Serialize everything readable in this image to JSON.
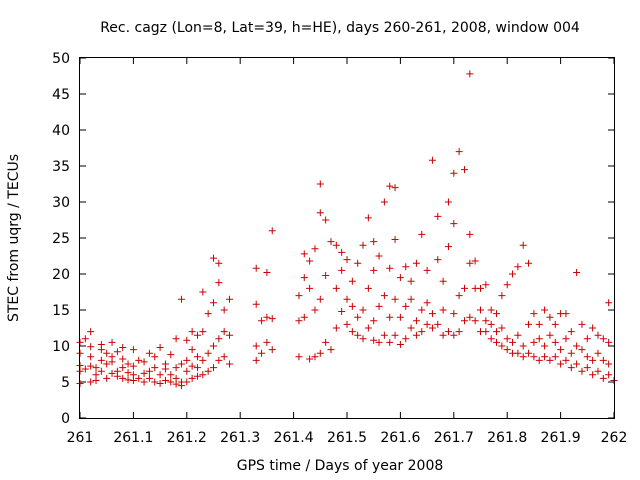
{
  "chart_data": {
    "type": "scatter",
    "title": "Rec. cagz (Lon=8, Lat=39, h=HE), days 260-261, 2008, window 004",
    "xlabel": "GPS time / Days of year 2008",
    "ylabel": "STEC from uqrg / TECUs",
    "xlim": [
      261,
      262
    ],
    "ylim": [
      0,
      50
    ],
    "xticks": [
      "261",
      "261.1",
      "261.2",
      "261.3",
      "261.4",
      "261.5",
      "261.6",
      "261.7",
      "261.8",
      "261.9",
      "262"
    ],
    "yticks": [
      "0",
      "5",
      "10",
      "15",
      "20",
      "25",
      "30",
      "35",
      "40",
      "45",
      "50"
    ],
    "grid": false,
    "marker": "plus",
    "color": "#cc0000",
    "series": [
      {
        "points": [
          [
            261.0,
            4.8
          ],
          [
            261.0,
            6.5
          ],
          [
            261.0,
            7.3
          ],
          [
            261.0,
            9.0
          ],
          [
            261.0,
            10.5
          ],
          [
            261.01,
            11.0
          ],
          [
            261.01,
            6.8
          ],
          [
            261.02,
            5.0
          ],
          [
            261.02,
            7.2
          ],
          [
            261.02,
            8.5
          ],
          [
            261.02,
            9.9
          ],
          [
            261.02,
            12.0
          ],
          [
            261.03,
            6.0
          ],
          [
            261.03,
            7.0
          ],
          [
            261.03,
            5.2
          ],
          [
            261.04,
            6.5
          ],
          [
            261.04,
            8.0
          ],
          [
            261.04,
            9.5
          ],
          [
            261.04,
            10.2
          ],
          [
            261.05,
            5.5
          ],
          [
            261.05,
            7.5
          ],
          [
            261.05,
            9.0
          ],
          [
            261.06,
            6.2
          ],
          [
            261.06,
            7.8
          ],
          [
            261.06,
            8.5
          ],
          [
            261.06,
            10.5
          ],
          [
            261.07,
            5.8
          ],
          [
            261.07,
            6.5
          ],
          [
            261.07,
            9.2
          ],
          [
            261.08,
            5.5
          ],
          [
            261.08,
            7.0
          ],
          [
            261.08,
            8.2
          ],
          [
            261.08,
            9.8
          ],
          [
            261.09,
            5.3
          ],
          [
            261.09,
            6.3
          ],
          [
            261.09,
            7.5
          ],
          [
            261.1,
            5.2
          ],
          [
            261.1,
            6.0
          ],
          [
            261.1,
            7.2
          ],
          [
            261.1,
            9.5
          ],
          [
            261.11,
            5.5
          ],
          [
            261.11,
            8.0
          ],
          [
            261.12,
            5.0
          ],
          [
            261.12,
            6.2
          ],
          [
            261.12,
            7.8
          ],
          [
            261.13,
            5.5
          ],
          [
            261.13,
            6.5
          ],
          [
            261.13,
            9.0
          ],
          [
            261.14,
            5.0
          ],
          [
            261.14,
            7.0
          ],
          [
            261.14,
            8.5
          ],
          [
            261.15,
            4.8
          ],
          [
            261.15,
            6.0
          ],
          [
            261.15,
            9.8
          ],
          [
            261.16,
            5.2
          ],
          [
            261.16,
            6.8
          ],
          [
            261.16,
            7.5
          ],
          [
            261.17,
            5.0
          ],
          [
            261.17,
            6.0
          ],
          [
            261.17,
            8.8
          ],
          [
            261.18,
            4.7
          ],
          [
            261.18,
            5.5
          ],
          [
            261.18,
            7.0
          ],
          [
            261.18,
            11.0
          ],
          [
            261.19,
            4.5
          ],
          [
            261.19,
            5.0
          ],
          [
            261.19,
            7.5
          ],
          [
            261.19,
            16.5
          ],
          [
            261.2,
            5.0
          ],
          [
            261.2,
            6.5
          ],
          [
            261.2,
            8.0
          ],
          [
            261.2,
            10.8
          ],
          [
            261.21,
            5.5
          ],
          [
            261.21,
            7.2
          ],
          [
            261.21,
            9.5
          ],
          [
            261.21,
            12.0
          ],
          [
            261.22,
            5.8
          ],
          [
            261.22,
            7.0
          ],
          [
            261.22,
            8.5
          ],
          [
            261.22,
            11.5
          ],
          [
            261.23,
            6.0
          ],
          [
            261.23,
            8.0
          ],
          [
            261.23,
            12.0
          ],
          [
            261.23,
            17.5
          ],
          [
            261.24,
            6.5
          ],
          [
            261.24,
            9.0
          ],
          [
            261.24,
            14.5
          ],
          [
            261.25,
            7.0
          ],
          [
            261.25,
            10.0
          ],
          [
            261.25,
            16.0
          ],
          [
            261.25,
            22.2
          ],
          [
            261.26,
            8.0
          ],
          [
            261.26,
            11.0
          ],
          [
            261.26,
            18.8
          ],
          [
            261.26,
            21.5
          ],
          [
            261.27,
            8.5
          ],
          [
            261.27,
            12.0
          ],
          [
            261.27,
            15.0
          ],
          [
            261.28,
            7.5
          ],
          [
            261.28,
            11.5
          ],
          [
            261.28,
            16.5
          ],
          [
            261.33,
            8.0
          ],
          [
            261.33,
            10.0
          ],
          [
            261.33,
            15.8
          ],
          [
            261.33,
            20.8
          ],
          [
            261.34,
            9.0
          ],
          [
            261.34,
            13.5
          ],
          [
            261.35,
            10.5
          ],
          [
            261.35,
            14.0
          ],
          [
            261.35,
            20.2
          ],
          [
            261.36,
            9.5
          ],
          [
            261.36,
            13.8
          ],
          [
            261.36,
            26.0
          ],
          [
            261.41,
            8.5
          ],
          [
            261.41,
            13.5
          ],
          [
            261.41,
            17.0
          ],
          [
            261.42,
            14.0
          ],
          [
            261.42,
            19.5
          ],
          [
            261.42,
            22.8
          ],
          [
            261.43,
            8.2
          ],
          [
            261.43,
            18.0
          ],
          [
            261.43,
            21.8
          ],
          [
            261.44,
            8.5
          ],
          [
            261.44,
            15.0
          ],
          [
            261.44,
            23.5
          ],
          [
            261.45,
            9.0
          ],
          [
            261.45,
            16.5
          ],
          [
            261.45,
            28.5
          ],
          [
            261.45,
            32.5
          ],
          [
            261.46,
            10.5
          ],
          [
            261.46,
            19.8
          ],
          [
            261.46,
            27.5
          ],
          [
            261.47,
            9.5
          ],
          [
            261.47,
            24.5
          ],
          [
            261.48,
            12.5
          ],
          [
            261.48,
            18.0
          ],
          [
            261.48,
            24.0
          ],
          [
            261.49,
            14.8
          ],
          [
            261.49,
            20.5
          ],
          [
            261.49,
            23.0
          ],
          [
            261.5,
            13.0
          ],
          [
            261.5,
            16.5
          ],
          [
            261.5,
            22.0
          ],
          [
            261.51,
            12.0
          ],
          [
            261.51,
            15.5
          ],
          [
            261.51,
            19.0
          ],
          [
            261.52,
            11.5
          ],
          [
            261.52,
            14.0
          ],
          [
            261.52,
            21.5
          ],
          [
            261.53,
            11.0
          ],
          [
            261.53,
            15.0
          ],
          [
            261.53,
            24.0
          ],
          [
            261.54,
            12.5
          ],
          [
            261.54,
            18.0
          ],
          [
            261.54,
            27.8
          ],
          [
            261.55,
            10.8
          ],
          [
            261.55,
            13.5
          ],
          [
            261.55,
            20.5
          ],
          [
            261.55,
            24.5
          ],
          [
            261.56,
            10.5
          ],
          [
            261.56,
            15.5
          ],
          [
            261.56,
            22.5
          ],
          [
            261.57,
            11.5
          ],
          [
            261.57,
            17.0
          ],
          [
            261.57,
            30.0
          ],
          [
            261.58,
            10.5
          ],
          [
            261.58,
            14.0
          ],
          [
            261.58,
            20.8
          ],
          [
            261.58,
            32.2
          ],
          [
            261.59,
            11.5
          ],
          [
            261.59,
            16.5
          ],
          [
            261.59,
            24.8
          ],
          [
            261.59,
            32.0
          ],
          [
            261.6,
            10.2
          ],
          [
            261.6,
            14.0
          ],
          [
            261.6,
            19.5
          ],
          [
            261.61,
            11.0
          ],
          [
            261.61,
            15.5
          ],
          [
            261.61,
            21.0
          ],
          [
            261.62,
            12.5
          ],
          [
            261.62,
            16.5
          ],
          [
            261.62,
            19.0
          ],
          [
            261.63,
            11.5
          ],
          [
            261.63,
            13.5
          ],
          [
            261.63,
            21.5
          ],
          [
            261.64,
            12.0
          ],
          [
            261.64,
            15.0
          ],
          [
            261.64,
            25.5
          ],
          [
            261.65,
            13.0
          ],
          [
            261.65,
            16.0
          ],
          [
            261.65,
            20.5
          ],
          [
            261.66,
            12.5
          ],
          [
            261.66,
            14.5
          ],
          [
            261.66,
            35.8
          ],
          [
            261.67,
            13.0
          ],
          [
            261.67,
            22.0
          ],
          [
            261.67,
            28.0
          ],
          [
            261.68,
            11.5
          ],
          [
            261.68,
            15.0
          ],
          [
            261.68,
            19.0
          ],
          [
            261.69,
            12.0
          ],
          [
            261.69,
            23.8
          ],
          [
            261.69,
            30.0
          ],
          [
            261.7,
            11.5
          ],
          [
            261.7,
            14.5
          ],
          [
            261.7,
            27.0
          ],
          [
            261.7,
            34.0
          ],
          [
            261.71,
            12.0
          ],
          [
            261.71,
            17.0
          ],
          [
            261.71,
            37.0
          ],
          [
            261.72,
            13.5
          ],
          [
            261.72,
            18.0
          ],
          [
            261.72,
            34.5
          ],
          [
            261.73,
            14.0
          ],
          [
            261.73,
            21.5
          ],
          [
            261.73,
            25.5
          ],
          [
            261.73,
            47.8
          ],
          [
            261.74,
            13.5
          ],
          [
            261.74,
            18.0
          ],
          [
            261.74,
            21.8
          ],
          [
            261.75,
            12.0
          ],
          [
            261.75,
            15.0
          ],
          [
            261.75,
            18.0
          ],
          [
            261.76,
            12.0
          ],
          [
            261.76,
            13.5
          ],
          [
            261.76,
            18.5
          ],
          [
            261.77,
            11.0
          ],
          [
            261.77,
            13.0
          ],
          [
            261.77,
            15.0
          ],
          [
            261.78,
            10.5
          ],
          [
            261.78,
            12.0
          ],
          [
            261.78,
            14.5
          ],
          [
            261.79,
            10.0
          ],
          [
            261.79,
            12.5
          ],
          [
            261.79,
            17.0
          ],
          [
            261.8,
            9.5
          ],
          [
            261.8,
            11.0
          ],
          [
            261.8,
            18.5
          ],
          [
            261.81,
            9.0
          ],
          [
            261.81,
            10.5
          ],
          [
            261.81,
            20.0
          ],
          [
            261.82,
            9.0
          ],
          [
            261.82,
            11.5
          ],
          [
            261.82,
            21.0
          ],
          [
            261.83,
            8.5
          ],
          [
            261.83,
            10.0
          ],
          [
            261.83,
            24.0
          ],
          [
            261.84,
            9.0
          ],
          [
            261.84,
            13.0
          ],
          [
            261.84,
            21.5
          ],
          [
            261.85,
            8.5
          ],
          [
            261.85,
            10.5
          ],
          [
            261.85,
            14.5
          ],
          [
            261.86,
            8.0
          ],
          [
            261.86,
            11.0
          ],
          [
            261.86,
            13.0
          ],
          [
            261.87,
            8.5
          ],
          [
            261.87,
            10.0
          ],
          [
            261.87,
            15.0
          ],
          [
            261.88,
            8.0
          ],
          [
            261.88,
            11.5
          ],
          [
            261.88,
            14.0
          ],
          [
            261.89,
            8.5
          ],
          [
            261.89,
            10.5
          ],
          [
            261.89,
            13.0
          ],
          [
            261.9,
            7.5
          ],
          [
            261.9,
            9.5
          ],
          [
            261.9,
            14.5
          ],
          [
            261.91,
            8.0
          ],
          [
            261.91,
            11.0
          ],
          [
            261.91,
            14.5
          ],
          [
            261.92,
            7.0
          ],
          [
            261.92,
            9.0
          ],
          [
            261.92,
            12.0
          ],
          [
            261.93,
            7.5
          ],
          [
            261.93,
            10.0
          ],
          [
            261.93,
            20.2
          ],
          [
            261.94,
            6.5
          ],
          [
            261.94,
            9.5
          ],
          [
            261.94,
            13.0
          ],
          [
            261.95,
            7.0
          ],
          [
            261.95,
            8.5
          ],
          [
            261.95,
            11.0
          ],
          [
            261.96,
            6.0
          ],
          [
            261.96,
            8.0
          ],
          [
            261.96,
            12.5
          ],
          [
            261.97,
            6.5
          ],
          [
            261.97,
            9.0
          ],
          [
            261.97,
            11.5
          ],
          [
            261.98,
            5.5
          ],
          [
            261.98,
            8.0
          ],
          [
            261.98,
            11.0
          ],
          [
            261.99,
            6.0
          ],
          [
            261.99,
            7.5
          ],
          [
            261.99,
            16.0
          ],
          [
            261.99,
            10.5
          ],
          [
            262.0,
            5.2
          ]
        ]
      }
    ]
  }
}
